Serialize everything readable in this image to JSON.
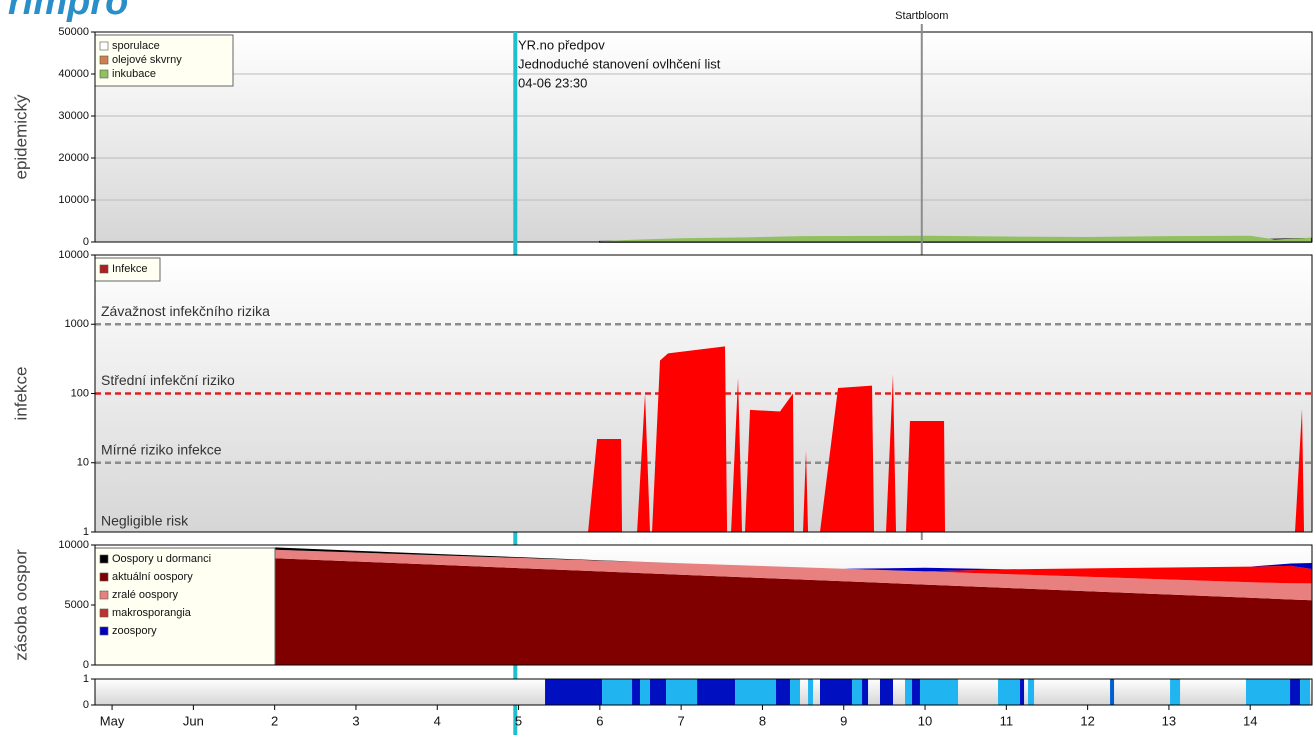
{
  "logo": "rimpro",
  "chart_data": [
    {
      "type": "area",
      "y_label": "epidemický",
      "ylim": [
        0,
        50000
      ],
      "yticks": [
        0,
        10000,
        20000,
        30000,
        40000,
        50000
      ],
      "grid": true,
      "xlim": [
        -0.21,
        14.76
      ],
      "annotations": [
        "YR.no předpov",
        "Jednoduché stanovení ovlhčení list",
        "04-06 23:30"
      ],
      "vertical_markers": [
        {
          "x": 4.96,
          "color": "#1fbfcf"
        },
        {
          "x": 9.96,
          "label": "Startbloom",
          "color": "#8c8c8c"
        }
      ],
      "series": [
        {
          "name": "sporulace",
          "color": "#ffffff",
          "x": [
            6.0,
            7.0,
            8.0,
            11.0,
            12.0,
            14.0,
            14.75
          ],
          "values": [
            100,
            300,
            200,
            400,
            300,
            500,
            800
          ]
        },
        {
          "name": "olejové skvrny",
          "color": "#d08050",
          "x": [
            13.8,
            14.0,
            14.2,
            14.4
          ],
          "values": [
            0,
            800,
            900,
            0
          ]
        },
        {
          "name": "inkubace",
          "color": "#90c060",
          "x": [
            6.0,
            6.5,
            7.0,
            7.8,
            8.5,
            10.0,
            11.0,
            12.0,
            13.0,
            14.0,
            14.3,
            14.75
          ],
          "values": [
            200,
            600,
            900,
            1100,
            1400,
            1500,
            1300,
            1200,
            1400,
            1500,
            600,
            1000
          ]
        }
      ]
    },
    {
      "type": "area",
      "y_label": "infekce",
      "log_scale": true,
      "ylim": [
        1,
        10000
      ],
      "yticks": [
        1,
        10,
        100,
        1000,
        10000
      ],
      "xlim": [
        -0.21,
        14.76
      ],
      "thresholds": [
        {
          "value": 1000,
          "label": "Závažnost infekčního rizika",
          "color": "#8c8c8c"
        },
        {
          "value": 100,
          "label": "Střední infekční riziko",
          "color": "#e02020"
        },
        {
          "value": 10,
          "label": "Mírné riziko infekce",
          "color": "#8c8c8c"
        }
      ],
      "baseline_label": "Negligible risk",
      "series": [
        {
          "name": "Infekce",
          "color": "#ff0000",
          "legend_color": "#b02020",
          "x": [
            5.855,
            5.966,
            6.261,
            6.273,
            6.458,
            6.556,
            6.617,
            6.642,
            6.74,
            6.839,
            7.54,
            7.565,
            7.614,
            7.7,
            7.749,
            7.786,
            7.847,
            8.216,
            8.376,
            8.389,
            8.499,
            8.536,
            8.561,
            8.708,
            8.93,
            9.348,
            9.373,
            9.52,
            9.606,
            9.643,
            9.766,
            9.815,
            10.234,
            10.246,
            14.551,
            14.637,
            14.662
          ],
          "values": [
            1,
            22,
            22,
            1,
            1,
            100,
            1,
            1,
            300,
            380,
            480,
            1,
            1,
            170,
            1,
            1,
            58,
            55,
            100,
            1,
            1,
            15,
            1,
            1,
            120,
            130,
            1,
            1,
            190,
            1,
            1,
            40,
            40,
            1,
            1,
            60,
            1
          ]
        }
      ]
    },
    {
      "type": "stacked-area",
      "y_label": "zásoba oospor",
      "ylim": [
        0,
        10000
      ],
      "yticks": [
        0,
        5000,
        10000
      ],
      "xlim": [
        -0.21,
        14.76
      ],
      "x": [
        2,
        3,
        4,
        5,
        6,
        7,
        8,
        9,
        10,
        11,
        12,
        13,
        14,
        14.5,
        14.76
      ],
      "stack_order": [
        1,
        2,
        3,
        4,
        0
      ],
      "series": [
        {
          "name": "Oospory u dormanci",
          "color": "#000000",
          "values": [
            200,
            150,
            100,
            60,
            30,
            0,
            0,
            0,
            0,
            0,
            0,
            0,
            0,
            0,
            0
          ]
        },
        {
          "name": "aktuální oospory",
          "color": "#800000",
          "values": [
            8900,
            8625,
            8350,
            8075,
            7800,
            7525,
            7250,
            6975,
            6700,
            6425,
            6150,
            5875,
            5600,
            5460,
            5400
          ]
        },
        {
          "name": "zralé oospory",
          "color": "#e88080",
          "values": [
            700,
            750,
            800,
            850,
            900,
            950,
            1000,
            1050,
            1100,
            1150,
            1200,
            1250,
            1300,
            1350,
            1400
          ]
        },
        {
          "name": "makrosporangia",
          "color": "#ff0000",
          "legend_color": "#c03030",
          "values": [
            0,
            0,
            0,
            0,
            0,
            0,
            0,
            0,
            0,
            400,
            700,
            1000,
            1300,
            1450,
            1200
          ]
        },
        {
          "name": "zoospory",
          "color": "#0000c0",
          "values": [
            0,
            0,
            0,
            0,
            0,
            0,
            0,
            0,
            300,
            0,
            0,
            0,
            0,
            200,
            500
          ]
        }
      ]
    },
    {
      "type": "intervals",
      "ylim": [
        0,
        1
      ],
      "yticks": [
        0,
        1
      ],
      "xlim": [
        -0.21,
        14.76
      ],
      "xticks": [
        {
          "value": 0,
          "label": "May"
        },
        {
          "value": 1,
          "label": "Jun"
        },
        2,
        3,
        4,
        5,
        6,
        7,
        8,
        9,
        10,
        11,
        12,
        13,
        14
      ],
      "intervals": [
        {
          "start": 5.326,
          "end": 6.027,
          "value": 1,
          "color": "#0010c0"
        },
        {
          "start": 6.027,
          "end": 6.396,
          "value": 1,
          "color": "#20b4f0"
        },
        {
          "start": 6.396,
          "end": 6.494,
          "value": 1,
          "color": "#0010c0"
        },
        {
          "start": 6.494,
          "end": 6.617,
          "value": 1,
          "color": "#20b4f0"
        },
        {
          "start": 6.617,
          "end": 6.814,
          "value": 1,
          "color": "#0010c0"
        },
        {
          "start": 6.814,
          "end": 7.196,
          "value": 1,
          "color": "#20b4f0"
        },
        {
          "start": 7.196,
          "end": 7.663,
          "value": 1,
          "color": "#0010c0"
        },
        {
          "start": 7.663,
          "end": 8.167,
          "value": 1,
          "color": "#20b4f0"
        },
        {
          "start": 8.167,
          "end": 8.339,
          "value": 1,
          "color": "#0010c0"
        },
        {
          "start": 8.339,
          "end": 8.462,
          "value": 1,
          "color": "#20b4f0"
        },
        {
          "start": 8.561,
          "end": 8.622,
          "value": 1,
          "color": "#20b4f0"
        },
        {
          "start": 8.708,
          "end": 9.102,
          "value": 1,
          "color": "#0010c0"
        },
        {
          "start": 9.102,
          "end": 9.225,
          "value": 1,
          "color": "#20b4f0"
        },
        {
          "start": 9.225,
          "end": 9.299,
          "value": 1,
          "color": "#0010c0"
        },
        {
          "start": 9.446,
          "end": 9.606,
          "value": 1,
          "color": "#0010c0"
        },
        {
          "start": 9.754,
          "end": 9.84,
          "value": 1,
          "color": "#20b4f0"
        },
        {
          "start": 9.84,
          "end": 9.938,
          "value": 1,
          "color": "#0010c0"
        },
        {
          "start": 9.938,
          "end": 10.406,
          "value": 1,
          "color": "#20b4f0"
        },
        {
          "start": 10.898,
          "end": 11.168,
          "value": 1,
          "color": "#20b4f0"
        },
        {
          "start": 11.168,
          "end": 11.218,
          "value": 1,
          "color": "#0010c0"
        },
        {
          "start": 11.267,
          "end": 11.341,
          "value": 1,
          "color": "#20b4f0"
        },
        {
          "start": 12.276,
          "end": 12.325,
          "value": 1,
          "color": "#0060d0"
        },
        {
          "start": 13.014,
          "end": 13.137,
          "value": 1,
          "color": "#20b4f0"
        },
        {
          "start": 13.948,
          "end": 14.49,
          "value": 1,
          "color": "#20b4f0"
        },
        {
          "start": 14.49,
          "end": 14.613,
          "value": 1,
          "color": "#0010c0"
        },
        {
          "start": 14.613,
          "end": 14.736,
          "value": 1,
          "color": "#20b4f0"
        }
      ]
    }
  ]
}
